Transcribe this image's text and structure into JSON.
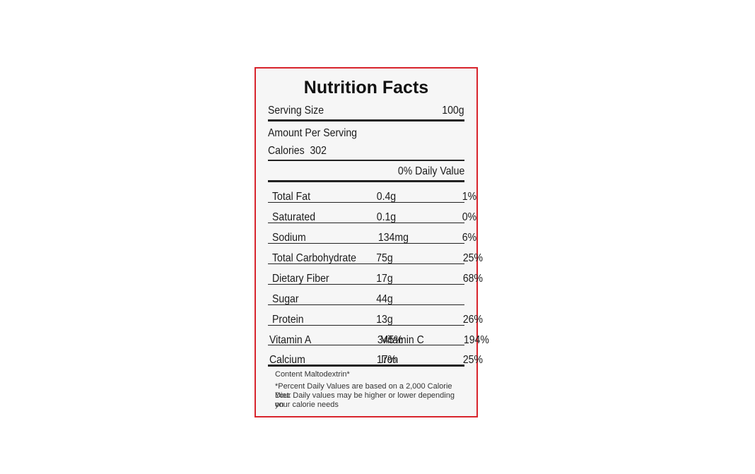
{
  "label": {
    "title": "Nutrition Facts",
    "serving_size_label": "Serving Size",
    "serving_size_value": "100g",
    "amount_per_serving": "Amount Per Serving",
    "calories_label": "Calories",
    "calories_value": "302",
    "daily_value_header": "0% Daily Value",
    "nutrients": [
      {
        "name": "Total Fat",
        "amount": "0.4g",
        "dv": "1%"
      },
      {
        "name": "Saturated",
        "amount": "0.1g",
        "dv": "0%"
      },
      {
        "name": "Sodium",
        "amount": "134mg",
        "dv": "6%"
      },
      {
        "name": "Total Carbohydrate",
        "amount": "75g",
        "dv": "25%"
      },
      {
        "name": "Dietary Fiber",
        "amount": "17g",
        "dv": "68%"
      },
      {
        "name": "Sugar",
        "amount": "44g",
        "dv": ""
      },
      {
        "name": "Protein",
        "amount": "13g",
        "dv": "26%"
      }
    ],
    "vitamins": [
      {
        "name1": "Vitamin A",
        "value1": "345%",
        "name2": "Vitamin C",
        "value2": "194%"
      },
      {
        "name1": "Calcium",
        "value1": "17%",
        "name2": "Iron",
        "value2": "25%"
      }
    ],
    "footnote_content": "Content Maltodextrin*",
    "footnote_lines": [
      "*Percent Daily Values are based on a 2,000 Calorie Diet.",
      "Your Daily values may be higher or lower depending on",
      "your calorie needs"
    ],
    "border_color": "#d8242c"
  }
}
